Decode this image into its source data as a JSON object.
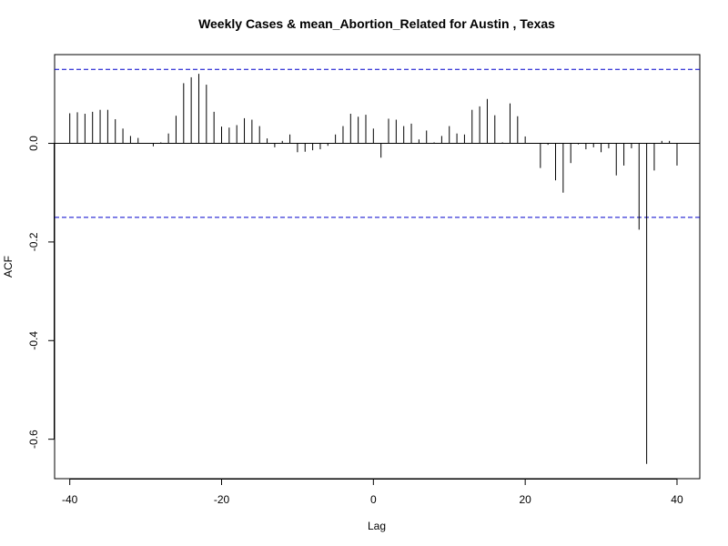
{
  "chart_data": {
    "type": "bar",
    "title": "Weekly Cases & mean_Abortion_Related for Austin , Texas",
    "xlabel": "Lag",
    "ylabel": "ACF",
    "xlim": [
      -42,
      43
    ],
    "ylim": [
      -0.68,
      0.18
    ],
    "x_ticks": [
      -40,
      -20,
      0,
      20,
      40
    ],
    "y_ticks": [
      -0.6,
      -0.4,
      -0.2,
      0.0
    ],
    "y_tick_labels": [
      "-0.6",
      "-0.4",
      "-0.2",
      "0.0"
    ],
    "x_tick_labels": [
      "-40",
      "-20",
      "0",
      "20",
      "40"
    ],
    "confidence_bound": 0.15,
    "ci_color": "#0000cc",
    "bar_color": "#000000",
    "x": [
      -40,
      -39,
      -38,
      -37,
      -36,
      -35,
      -34,
      -33,
      -32,
      -31,
      -30,
      -29,
      -28,
      -27,
      -26,
      -25,
      -24,
      -23,
      -22,
      -21,
      -20,
      -19,
      -18,
      -17,
      -16,
      -15,
      -14,
      -13,
      -12,
      -11,
      -10,
      -9,
      -8,
      -7,
      -6,
      -5,
      -4,
      -3,
      -2,
      -1,
      0,
      1,
      2,
      3,
      4,
      5,
      6,
      7,
      8,
      9,
      10,
      11,
      12,
      13,
      14,
      15,
      16,
      17,
      18,
      19,
      20,
      21,
      22,
      23,
      24,
      25,
      26,
      27,
      28,
      29,
      30,
      31,
      32,
      33,
      34,
      35,
      36,
      37,
      38,
      39,
      40
    ],
    "acf": [
      0.061,
      0.063,
      0.06,
      0.064,
      0.068,
      0.068,
      0.049,
      0.03,
      0.015,
      0.011,
      0.0,
      -0.006,
      0.002,
      0.02,
      0.056,
      0.122,
      0.134,
      0.141,
      0.119,
      0.064,
      0.034,
      0.032,
      0.037,
      0.051,
      0.048,
      0.035,
      0.01,
      -0.008,
      0.005,
      0.018,
      -0.018,
      -0.017,
      -0.014,
      -0.012,
      -0.005,
      0.018,
      0.035,
      0.06,
      0.054,
      0.058,
      0.03,
      -0.029,
      0.05,
      0.048,
      0.035,
      0.04,
      0.008,
      0.026,
      0.002,
      0.015,
      0.035,
      0.02,
      0.018,
      0.068,
      0.075,
      0.09,
      0.057,
      0.002,
      0.081,
      0.055,
      0.014,
      0.0,
      -0.05,
      -0.003,
      -0.075,
      -0.1,
      -0.04,
      -0.002,
      -0.012,
      -0.008,
      -0.018,
      -0.01,
      -0.065,
      -0.045,
      -0.01,
      -0.175,
      -0.65,
      -0.055,
      0.005,
      0.005,
      -0.045
    ]
  }
}
